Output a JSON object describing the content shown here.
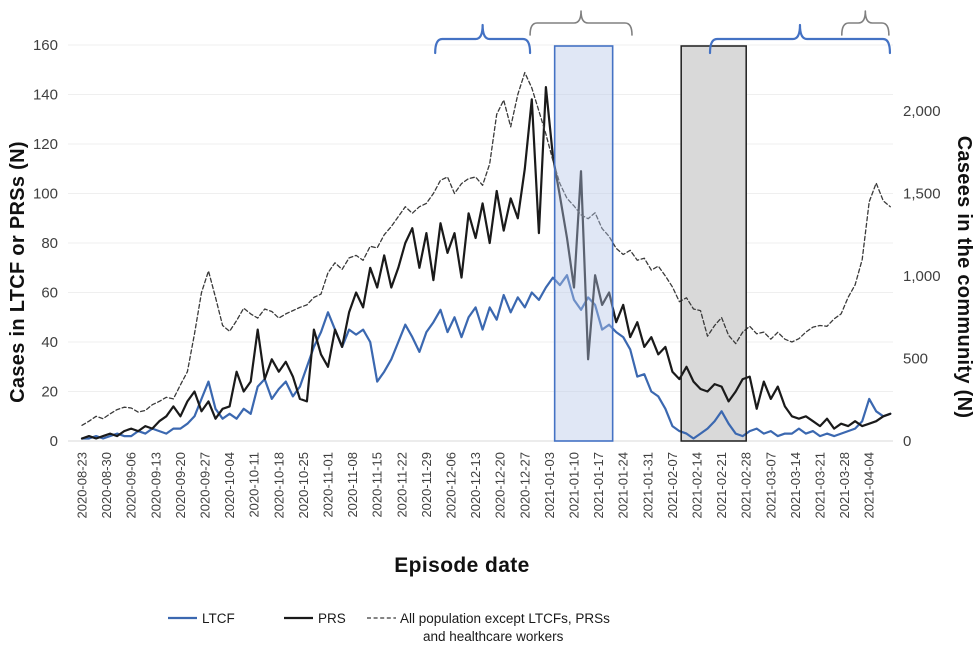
{
  "chart_data": {
    "type": "line",
    "title": "",
    "x_axis": {
      "label": "Episode date",
      "start_date": "2020-08-23",
      "tick_interval_days": 7,
      "tick_labels": [
        "2020-08-23",
        "2020-08-30",
        "2020-09-06",
        "2020-09-13",
        "2020-09-20",
        "2020-09-27",
        "2020-10-04",
        "2020-10-11",
        "2020-10-18",
        "2020-10-25",
        "2020-11-01",
        "2020-11-08",
        "2020-11-15",
        "2020-11-22",
        "2020-11-29",
        "2020-12-06",
        "2020-12-13",
        "2020-12-20",
        "2020-12-27",
        "2021-01-03",
        "2021-01-10",
        "2021-01-17",
        "2021-01-24",
        "2021-01-31",
        "2021-02-07",
        "2021-02-14",
        "2021-02-21",
        "2021-02-28",
        "2021-03-07",
        "2021-03-14",
        "2021-03-21",
        "2021-03-28",
        "2021-04-04"
      ]
    },
    "y_axis_left": {
      "label": "Cases in LTCF or PRSs (N)",
      "ticks": [
        0,
        20,
        40,
        60,
        80,
        100,
        120,
        140,
        160
      ],
      "range": [
        0,
        160
      ],
      "grid": true
    },
    "y_axis_right": {
      "label": "Casees in the community (N)",
      "tick_labels": [
        "0",
        "500",
        "1,000",
        "1,500",
        "2,000"
      ],
      "tick_values": [
        0,
        500,
        1000,
        1500,
        2000
      ],
      "range": [
        0,
        2400
      ]
    },
    "sampling": {
      "start_day": 0,
      "step_days": 2
    },
    "series": [
      {
        "name": "LTCF",
        "axis": "left",
        "style": "solid",
        "color": "#3B68B0",
        "values": [
          1,
          1,
          2,
          1,
          2,
          3,
          2,
          2,
          4,
          3,
          5,
          4,
          3,
          5,
          5,
          7,
          10,
          17,
          24,
          13,
          9,
          11,
          9,
          13,
          11,
          22,
          25,
          17,
          21,
          24,
          18,
          22,
          30,
          38,
          44,
          52,
          45,
          38,
          45,
          43,
          45,
          40,
          24,
          28,
          33,
          40,
          47,
          42,
          36,
          44,
          48,
          53,
          44,
          50,
          42,
          50,
          54,
          45,
          54,
          49,
          59,
          52,
          58,
          54,
          60,
          57,
          62,
          66,
          63,
          67,
          57,
          53,
          58,
          55,
          45,
          47,
          44,
          42,
          37,
          26,
          27,
          20,
          18,
          13,
          6,
          4,
          3,
          1,
          3,
          5,
          8,
          12,
          7,
          3,
          2,
          4,
          5,
          3,
          4,
          2,
          3,
          3,
          5,
          3,
          4,
          2,
          3,
          2,
          3,
          4,
          5,
          8,
          17,
          12,
          10,
          11
        ]
      },
      {
        "name": "PRS",
        "axis": "left",
        "style": "solid",
        "color": "#1a1a1a",
        "values": [
          1,
          2,
          1,
          2,
          3,
          2,
          4,
          5,
          4,
          6,
          5,
          8,
          10,
          14,
          10,
          16,
          20,
          12,
          16,
          9,
          13,
          14,
          28,
          20,
          24,
          45,
          25,
          33,
          28,
          32,
          26,
          17,
          16,
          45,
          35,
          30,
          45,
          38,
          52,
          60,
          54,
          70,
          62,
          75,
          62,
          70,
          80,
          86,
          70,
          84,
          65,
          88,
          76,
          84,
          66,
          92,
          82,
          96,
          80,
          101,
          85,
          98,
          90,
          110,
          138,
          84,
          143,
          115,
          99,
          82,
          62,
          109,
          33,
          67,
          55,
          60,
          48,
          55,
          42,
          48,
          38,
          42,
          35,
          38,
          28,
          25,
          30,
          24,
          21,
          20,
          23,
          22,
          16,
          20,
          25,
          26,
          13,
          24,
          17,
          22,
          14,
          10,
          9,
          10,
          8,
          6,
          9,
          5,
          7,
          6,
          8,
          6,
          7,
          8,
          10,
          11
        ]
      },
      {
        "name": "All population except LTCFs, PRSs and healthcare workers",
        "axis": "right",
        "style": "dashed",
        "color": "#3a3a3a",
        "values": [
          95,
          120,
          150,
          135,
          165,
          190,
          205,
          200,
          175,
          185,
          220,
          240,
          265,
          255,
          340,
          420,
          650,
          900,
          1030,
          870,
          700,
          665,
          730,
          805,
          770,
          745,
          800,
          785,
          745,
          770,
          790,
          810,
          825,
          870,
          890,
          1020,
          1080,
          1040,
          1110,
          1125,
          1095,
          1180,
          1170,
          1250,
          1300,
          1360,
          1420,
          1380,
          1420,
          1440,
          1500,
          1580,
          1600,
          1500,
          1560,
          1590,
          1600,
          1550,
          1680,
          1980,
          2066,
          1904,
          2100,
          2233,
          2140,
          2000,
          1860,
          1700,
          1560,
          1470,
          1425,
          1370,
          1347,
          1383,
          1287,
          1240,
          1167,
          1130,
          1156,
          1096,
          1108,
          1036,
          1060,
          1000,
          934,
          844,
          868,
          800,
          790,
          635,
          700,
          748,
          640,
          590,
          660,
          695,
          650,
          660,
          617,
          659,
          617,
          600,
          620,
          660,
          690,
          700,
          695,
          740,
          770,
          870,
          946,
          1100,
          1450,
          1563,
          1455,
          1420
        ]
      }
    ],
    "annotations": {
      "highlight_rects": [
        {
          "id": "blue-highlight-rect",
          "day_start": 134.5,
          "day_end": 151,
          "fill": "rgba(180,198,231,0.42)",
          "stroke": "#4472C4",
          "layer": "front"
        },
        {
          "id": "gray-highlight-rect",
          "day_start": 170.5,
          "day_end": 189,
          "fill": "#d9d9d9",
          "stroke": "#1f1f1f",
          "layer": "back"
        }
      ],
      "braces": [
        {
          "id": "brace-blue-1",
          "color": "#4472C4",
          "day_start": 100.5,
          "day_end": 127.5,
          "y_tip": 25,
          "y_bar": 39,
          "y_end": 53,
          "width": 2.2
        },
        {
          "id": "brace-gray-1",
          "color": "#808080",
          "day_start": 127.5,
          "day_end": 156.5,
          "y_tip": 11,
          "y_bar": 23,
          "y_end": 35,
          "width": 1.6
        },
        {
          "id": "brace-blue-2",
          "color": "#4472C4",
          "day_start": 178.7,
          "day_end": 229.9,
          "y_tip": 25,
          "y_bar": 39,
          "y_end": 53,
          "width": 2.2
        },
        {
          "id": "brace-gray-2",
          "color": "#808080",
          "day_start": 216.2,
          "day_end": 229.6,
          "y_tip": 11,
          "y_bar": 23,
          "y_end": 35,
          "width": 1.6
        }
      ]
    },
    "legend": {
      "items": [
        {
          "label": "LTCF",
          "style": "solid",
          "color": "#3B68B0"
        },
        {
          "label": "PRS",
          "style": "solid",
          "color": "#1a1a1a"
        },
        {
          "label_line1": "All population except LTCFs, PRSs",
          "label_line2": "and healthcare workers",
          "style": "dashed",
          "color": "#3a3a3a"
        }
      ]
    }
  }
}
